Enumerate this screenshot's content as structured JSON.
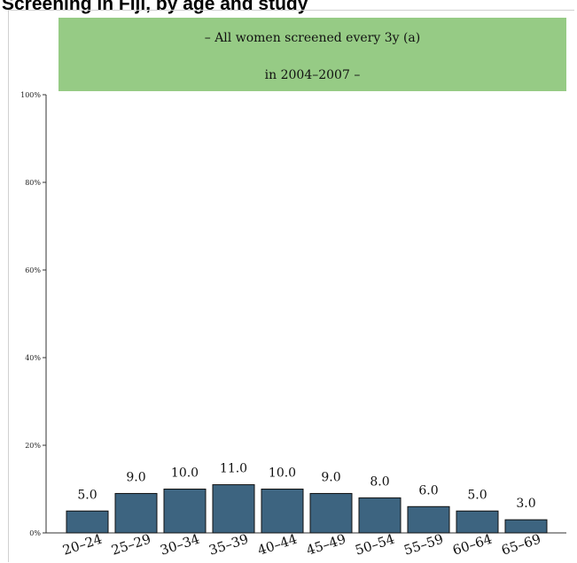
{
  "title": "Screening in Fiji, by age and study",
  "banner": {
    "line1": "– All women screened every 3y (a)",
    "line2": "in 2004–2007 –"
  },
  "colors": {
    "bar": "#3d6480",
    "banner": "#96cb85"
  },
  "chart_data": {
    "type": "bar",
    "categories": [
      "20–24",
      "25–29",
      "30–34",
      "35–39",
      "40–44",
      "45–49",
      "50–54",
      "55–59",
      "60–64",
      "65–69"
    ],
    "values": [
      5.0,
      9.0,
      10.0,
      11.0,
      10.0,
      9.0,
      8.0,
      6.0,
      5.0,
      3.0
    ],
    "value_labels": [
      "5.0",
      "9.0",
      "10.0",
      "11.0",
      "10.0",
      "9.0",
      "8.0",
      "6.0",
      "5.0",
      "3.0"
    ],
    "yticks": [
      0,
      20,
      40,
      60,
      80,
      100
    ],
    "ytick_labels": [
      "0%",
      "20%",
      "40%",
      "60%",
      "80%",
      "100%"
    ],
    "ylim": [
      0,
      100
    ],
    "grid": false,
    "legend": "none"
  }
}
